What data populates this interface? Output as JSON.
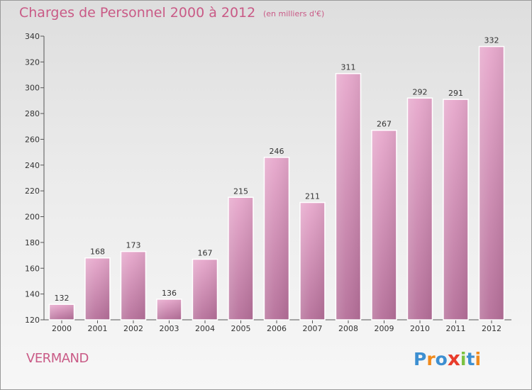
{
  "title": "Charges de Personnel 2000 à 2012",
  "subtitle": "(en milliers d'€)",
  "commune": "VERMAND",
  "logo": {
    "text": "Proxiti",
    "letters": [
      "P",
      "r",
      "o",
      "x",
      "i",
      "t",
      "i"
    ],
    "colors": [
      "#3d8fd1",
      "#f08a1c",
      "#3d8fd1",
      "#e83c2c",
      "#7cc242",
      "#3d8fd1",
      "#f08a1c"
    ]
  },
  "colors": {
    "accent": "#c95a86",
    "bar_top": "#e7a8cc",
    "bar_bottom": "#b56f99",
    "axis": "#555555",
    "grid": "#cccccc"
  },
  "chart_data": {
    "type": "bar",
    "title": "Charges de Personnel 2000 à 2012",
    "subtitle": "(en milliers d'€)",
    "xlabel": "",
    "ylabel": "",
    "categories": [
      "2000",
      "2001",
      "2002",
      "2003",
      "2004",
      "2005",
      "2006",
      "2007",
      "2008",
      "2009",
      "2010",
      "2011",
      "2012"
    ],
    "values": [
      132,
      168,
      173,
      136,
      167,
      215,
      246,
      211,
      311,
      267,
      292,
      291,
      332
    ],
    "ylim": [
      120,
      340
    ],
    "yticks": [
      120,
      140,
      160,
      180,
      200,
      220,
      240,
      260,
      280,
      300,
      320,
      340
    ],
    "grid": false,
    "legend": "none"
  }
}
